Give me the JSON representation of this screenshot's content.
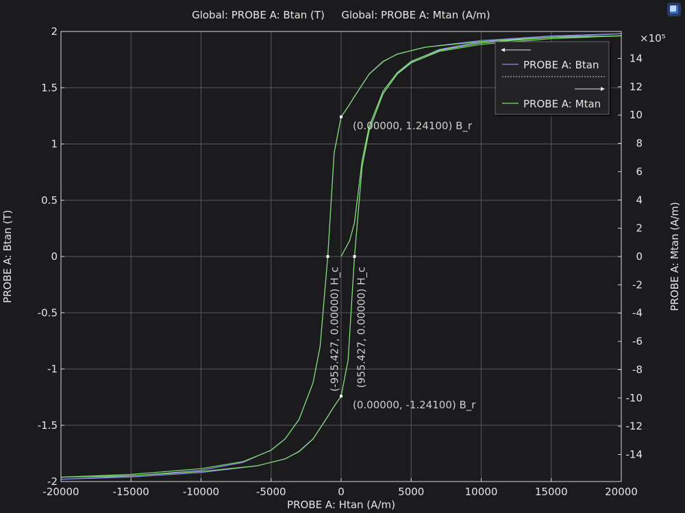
{
  "colors": {
    "background": "#1b1b1e",
    "plot_background": "#1b1b1e",
    "grid": "#5a5a5e",
    "axis": "#d9d9d9",
    "btan": "#8f8cf0",
    "mtan": "#7fe06a",
    "annotation_point": "#ffffff"
  },
  "icons": {
    "app_icon": "comsol-window-icon"
  },
  "chart_data": {
    "type": "line",
    "title_left": "Global: PROBE A: Btan (T)",
    "title_right": "Global: PROBE A: Mtan (A/m)",
    "xlabel": "PROBE A: Htan (A/m)",
    "ylabel": "PROBE A: Btan (T)",
    "y2label": "PROBE A: Mtan (A/m)",
    "y2_exponent": "×10⁵",
    "xlim": [
      -20000,
      20000
    ],
    "ylim": [
      -2,
      2
    ],
    "y2lim": [
      -15.91,
      15.91
    ],
    "grid": true,
    "x_ticks": [
      "-20000",
      "-15000",
      "-10000",
      "-5000",
      "0",
      "5000",
      "10000",
      "15000",
      "20000"
    ],
    "x_tick_values": [
      -20000,
      -15000,
      -10000,
      -5000,
      0,
      5000,
      10000,
      15000,
      20000
    ],
    "y_ticks": [
      "-2",
      "-1.5",
      "-1",
      "-0.5",
      "0",
      "0.5",
      "1",
      "1.5",
      "2"
    ],
    "y_tick_values": [
      -2,
      -1.5,
      -1,
      -0.5,
      0,
      0.5,
      1,
      1.5,
      2
    ],
    "y2_ticks": [
      "-14",
      "-12",
      "-10",
      "-8",
      "-6",
      "-4",
      "-2",
      "0",
      "2",
      "4",
      "6",
      "8",
      "10",
      "12",
      "14"
    ],
    "y2_tick_values": [
      -14,
      -12,
      -10,
      -8,
      -6,
      -4,
      -2,
      0,
      2,
      4,
      6,
      8,
      10,
      12,
      14
    ],
    "legend": {
      "placement": "top-right",
      "entries": [
        "PROBE A: Btan",
        "PROBE A: Mtan"
      ]
    },
    "series": [
      {
        "name": "PROBE A: Btan",
        "axis": "left",
        "color": "#8f8cf0",
        "descending_branch": {
          "x": [
            20000,
            15000,
            10000,
            6000,
            4000,
            3000,
            2000,
            1000,
            500,
            0,
            -500,
            -955.427,
            -1500,
            -2000,
            -3000,
            -4000,
            -5000,
            -7000,
            -10000,
            -15000,
            -20000
          ],
          "y": [
            1.98,
            1.96,
            1.92,
            1.86,
            1.8,
            1.73,
            1.62,
            1.43,
            1.33,
            1.241,
            0.92,
            0,
            -0.8,
            -1.12,
            -1.45,
            -1.62,
            -1.72,
            -1.83,
            -1.9,
            -1.95,
            -1.98
          ]
        },
        "ascending_branch": {
          "x": [
            -20000,
            -15000,
            -10000,
            -6000,
            -4000,
            -3000,
            -2000,
            -1000,
            -500,
            0,
            500,
            955.427,
            1500,
            2000,
            3000,
            4000,
            5000,
            7000,
            10000,
            15000,
            20000
          ],
          "y": [
            -1.98,
            -1.96,
            -1.92,
            -1.86,
            -1.8,
            -1.73,
            -1.62,
            -1.43,
            -1.33,
            -1.241,
            -0.92,
            0,
            0.8,
            1.12,
            1.45,
            1.62,
            1.72,
            1.83,
            1.9,
            1.95,
            1.98
          ]
        },
        "initial_curve": {
          "x": [
            0,
            300,
            600,
            955.427,
            1500,
            2000,
            3000,
            4000,
            5000,
            7000,
            10000,
            15000,
            20000
          ],
          "y": [
            0,
            0.07,
            0.14,
            0.3,
            0.85,
            1.15,
            1.47,
            1.63,
            1.73,
            1.84,
            1.91,
            1.96,
            1.98
          ]
        }
      },
      {
        "name": "PROBE A: Mtan",
        "axis": "right",
        "color": "#7fe06a",
        "descending_branch": {
          "x": [
            20000,
            15000,
            10000,
            6000,
            4000,
            3000,
            2000,
            1000,
            500,
            0,
            -500,
            -955.427,
            -1500,
            -2000,
            -3000,
            -4000,
            -5000,
            -7000,
            -10000,
            -15000,
            -20000
          ],
          "y": [
            15.6,
            15.5,
            15.2,
            14.8,
            14.3,
            13.8,
            12.9,
            11.4,
            10.6,
            9.88,
            7.32,
            0,
            -6.37,
            -8.92,
            -11.5,
            -12.9,
            -13.7,
            -14.5,
            -15.0,
            -15.4,
            -15.6
          ]
        },
        "ascending_branch": {
          "x": [
            -20000,
            -15000,
            -10000,
            -6000,
            -4000,
            -3000,
            -2000,
            -1000,
            -500,
            0,
            500,
            955.427,
            1500,
            2000,
            3000,
            4000,
            5000,
            7000,
            10000,
            15000,
            20000
          ],
          "y": [
            -15.6,
            -15.5,
            -15.2,
            -14.8,
            -14.3,
            -13.8,
            -12.9,
            -11.4,
            -10.6,
            -9.88,
            -7.32,
            0,
            6.37,
            8.92,
            11.5,
            12.9,
            13.7,
            14.5,
            15.0,
            15.4,
            15.6
          ]
        },
        "initial_curve": {
          "x": [
            0,
            300,
            600,
            955.427,
            1500,
            2000,
            3000,
            4000,
            5000,
            7000,
            10000,
            15000,
            20000
          ],
          "y": [
            0,
            0.55,
            1.1,
            2.4,
            6.8,
            9.2,
            11.7,
            13.0,
            13.8,
            14.6,
            15.1,
            15.5,
            15.6
          ]
        }
      }
    ],
    "annotations": [
      {
        "x": 0,
        "y": 1.241,
        "label": "(0.00000, 1.24100) B_r",
        "orientation": "horizontal"
      },
      {
        "x": 0,
        "y": -1.241,
        "label": "(0.00000, -1.24100) B_r",
        "orientation": "horizontal"
      },
      {
        "x": -955.427,
        "y": 0,
        "label": "(-955.427, 0.00000) H_c",
        "orientation": "vertical"
      },
      {
        "x": 955.427,
        "y": 0,
        "label": "(955.427, 0.00000) H_c",
        "orientation": "vertical"
      }
    ]
  }
}
